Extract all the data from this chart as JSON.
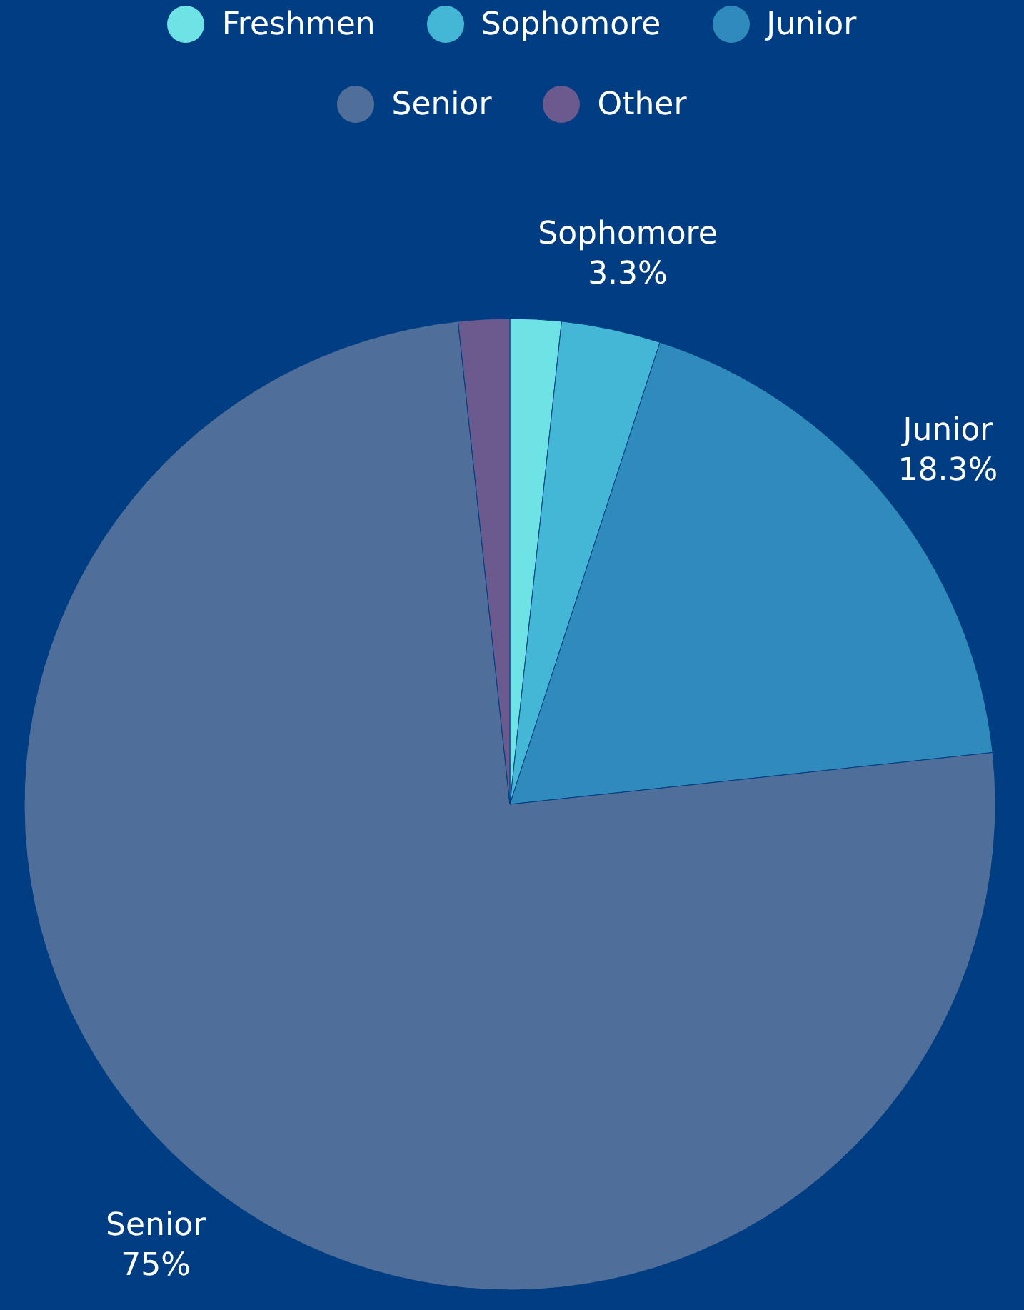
{
  "chart_data": {
    "type": "pie",
    "categories": [
      "Freshmen",
      "Sophomore",
      "Junior",
      "Senior",
      "Other"
    ],
    "values": [
      1.7,
      3.3,
      18.3,
      75,
      1.7
    ],
    "colors": [
      "#6ee3e6",
      "#45b7d6",
      "#2e8bbb",
      "#4f6e99",
      "#6a5a8e"
    ],
    "value_labels": [
      null,
      "3.3%",
      "18.3%",
      "75%",
      null
    ],
    "legend": "top"
  }
}
